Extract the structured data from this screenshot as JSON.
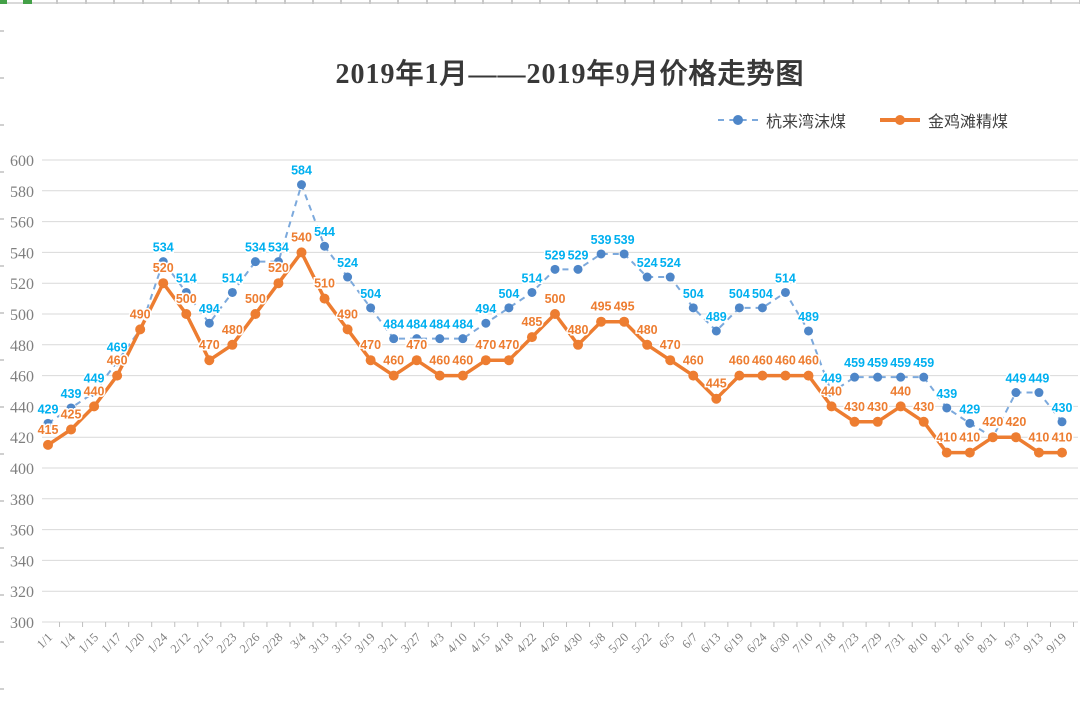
{
  "chart_data": {
    "type": "line",
    "title": "2019年1月——2019年9月价格走势图",
    "categories": [
      "1/1",
      "1/4",
      "1/15",
      "1/17",
      "1/20",
      "1/24",
      "2/12",
      "2/15",
      "2/23",
      "2/26",
      "2/28",
      "3/4",
      "3/13",
      "3/15",
      "3/19",
      "3/21",
      "3/27",
      "4/3",
      "4/10",
      "4/15",
      "4/18",
      "4/22",
      "4/26",
      "4/30",
      "5/8",
      "5/20",
      "5/22",
      "6/5",
      "6/7",
      "6/13",
      "6/19",
      "6/24",
      "6/30",
      "7/10",
      "7/18",
      "7/23",
      "7/29",
      "7/31",
      "8/10",
      "8/12",
      "8/16",
      "8/31",
      "9/3",
      "9/13",
      "9/19"
    ],
    "series": [
      {
        "name": "杭来湾沫煤",
        "style": "dashed",
        "line_color": "#7ca9dc",
        "marker_color": "#4e86c8",
        "label_color": "#00b0f0",
        "values": [
          429,
          439,
          449,
          469,
          490,
          534,
          514,
          494,
          514,
          534,
          534,
          584,
          544,
          524,
          504,
          484,
          484,
          484,
          484,
          494,
          504,
          514,
          529,
          529,
          539,
          539,
          524,
          524,
          504,
          489,
          504,
          504,
          514,
          489,
          449,
          459,
          459,
          459,
          459,
          439,
          429,
          420,
          449,
          449,
          430
        ]
      },
      {
        "name": "金鸡滩精煤",
        "style": "solid",
        "line_color": "#ed7d31",
        "marker_color": "#ed7d31",
        "label_color": "#ed7d31",
        "values": [
          415,
          425,
          440,
          460,
          490,
          520,
          500,
          470,
          480,
          500,
          520,
          540,
          510,
          490,
          470,
          460,
          470,
          460,
          460,
          470,
          470,
          485,
          500,
          480,
          495,
          495,
          480,
          470,
          460,
          445,
          460,
          460,
          460,
          460,
          440,
          430,
          430,
          440,
          430,
          410,
          410,
          420,
          420,
          410,
          410
        ]
      }
    ],
    "ylim": [
      300,
      600
    ],
    "yticks": [
      300,
      320,
      340,
      360,
      380,
      400,
      420,
      440,
      460,
      480,
      500,
      520,
      540,
      560,
      580,
      600
    ],
    "grid": true,
    "legend_position": "top-right",
    "gridline_color": "#d9d9d9",
    "axis_text_color": "#7f7f7f"
  }
}
